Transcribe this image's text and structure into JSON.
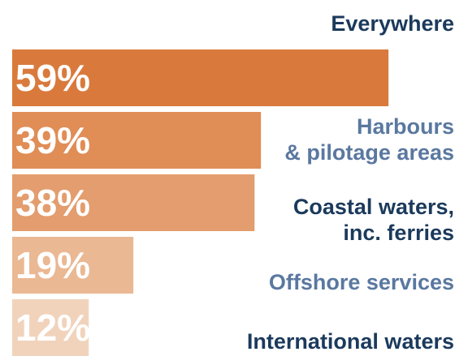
{
  "chart_data": {
    "type": "bar",
    "orientation": "horizontal",
    "title": "",
    "xlabel": "",
    "ylabel": "",
    "xlim": [
      0,
      100
    ],
    "categories": [
      [
        "Everywhere"
      ],
      [
        "Harbours",
        "& pilotage areas"
      ],
      [
        "Coastal waters,",
        "inc. ferries"
      ],
      [
        "Offshore services"
      ],
      [
        "International waters"
      ]
    ],
    "values": [
      59,
      39,
      38,
      19,
      12
    ],
    "value_labels": [
      "59%",
      "39%",
      "38%",
      "19%",
      "12%"
    ],
    "bar_colors": [
      "#d97a3c",
      "#e08d56",
      "#e39d6e",
      "#eab893",
      "#f1d3bc"
    ],
    "label_colors": [
      "#1b3a5c",
      "#5a78a0",
      "#1b3a5c",
      "#5a78a0",
      "#1b3a5c"
    ],
    "grid": false,
    "legend": "none"
  }
}
